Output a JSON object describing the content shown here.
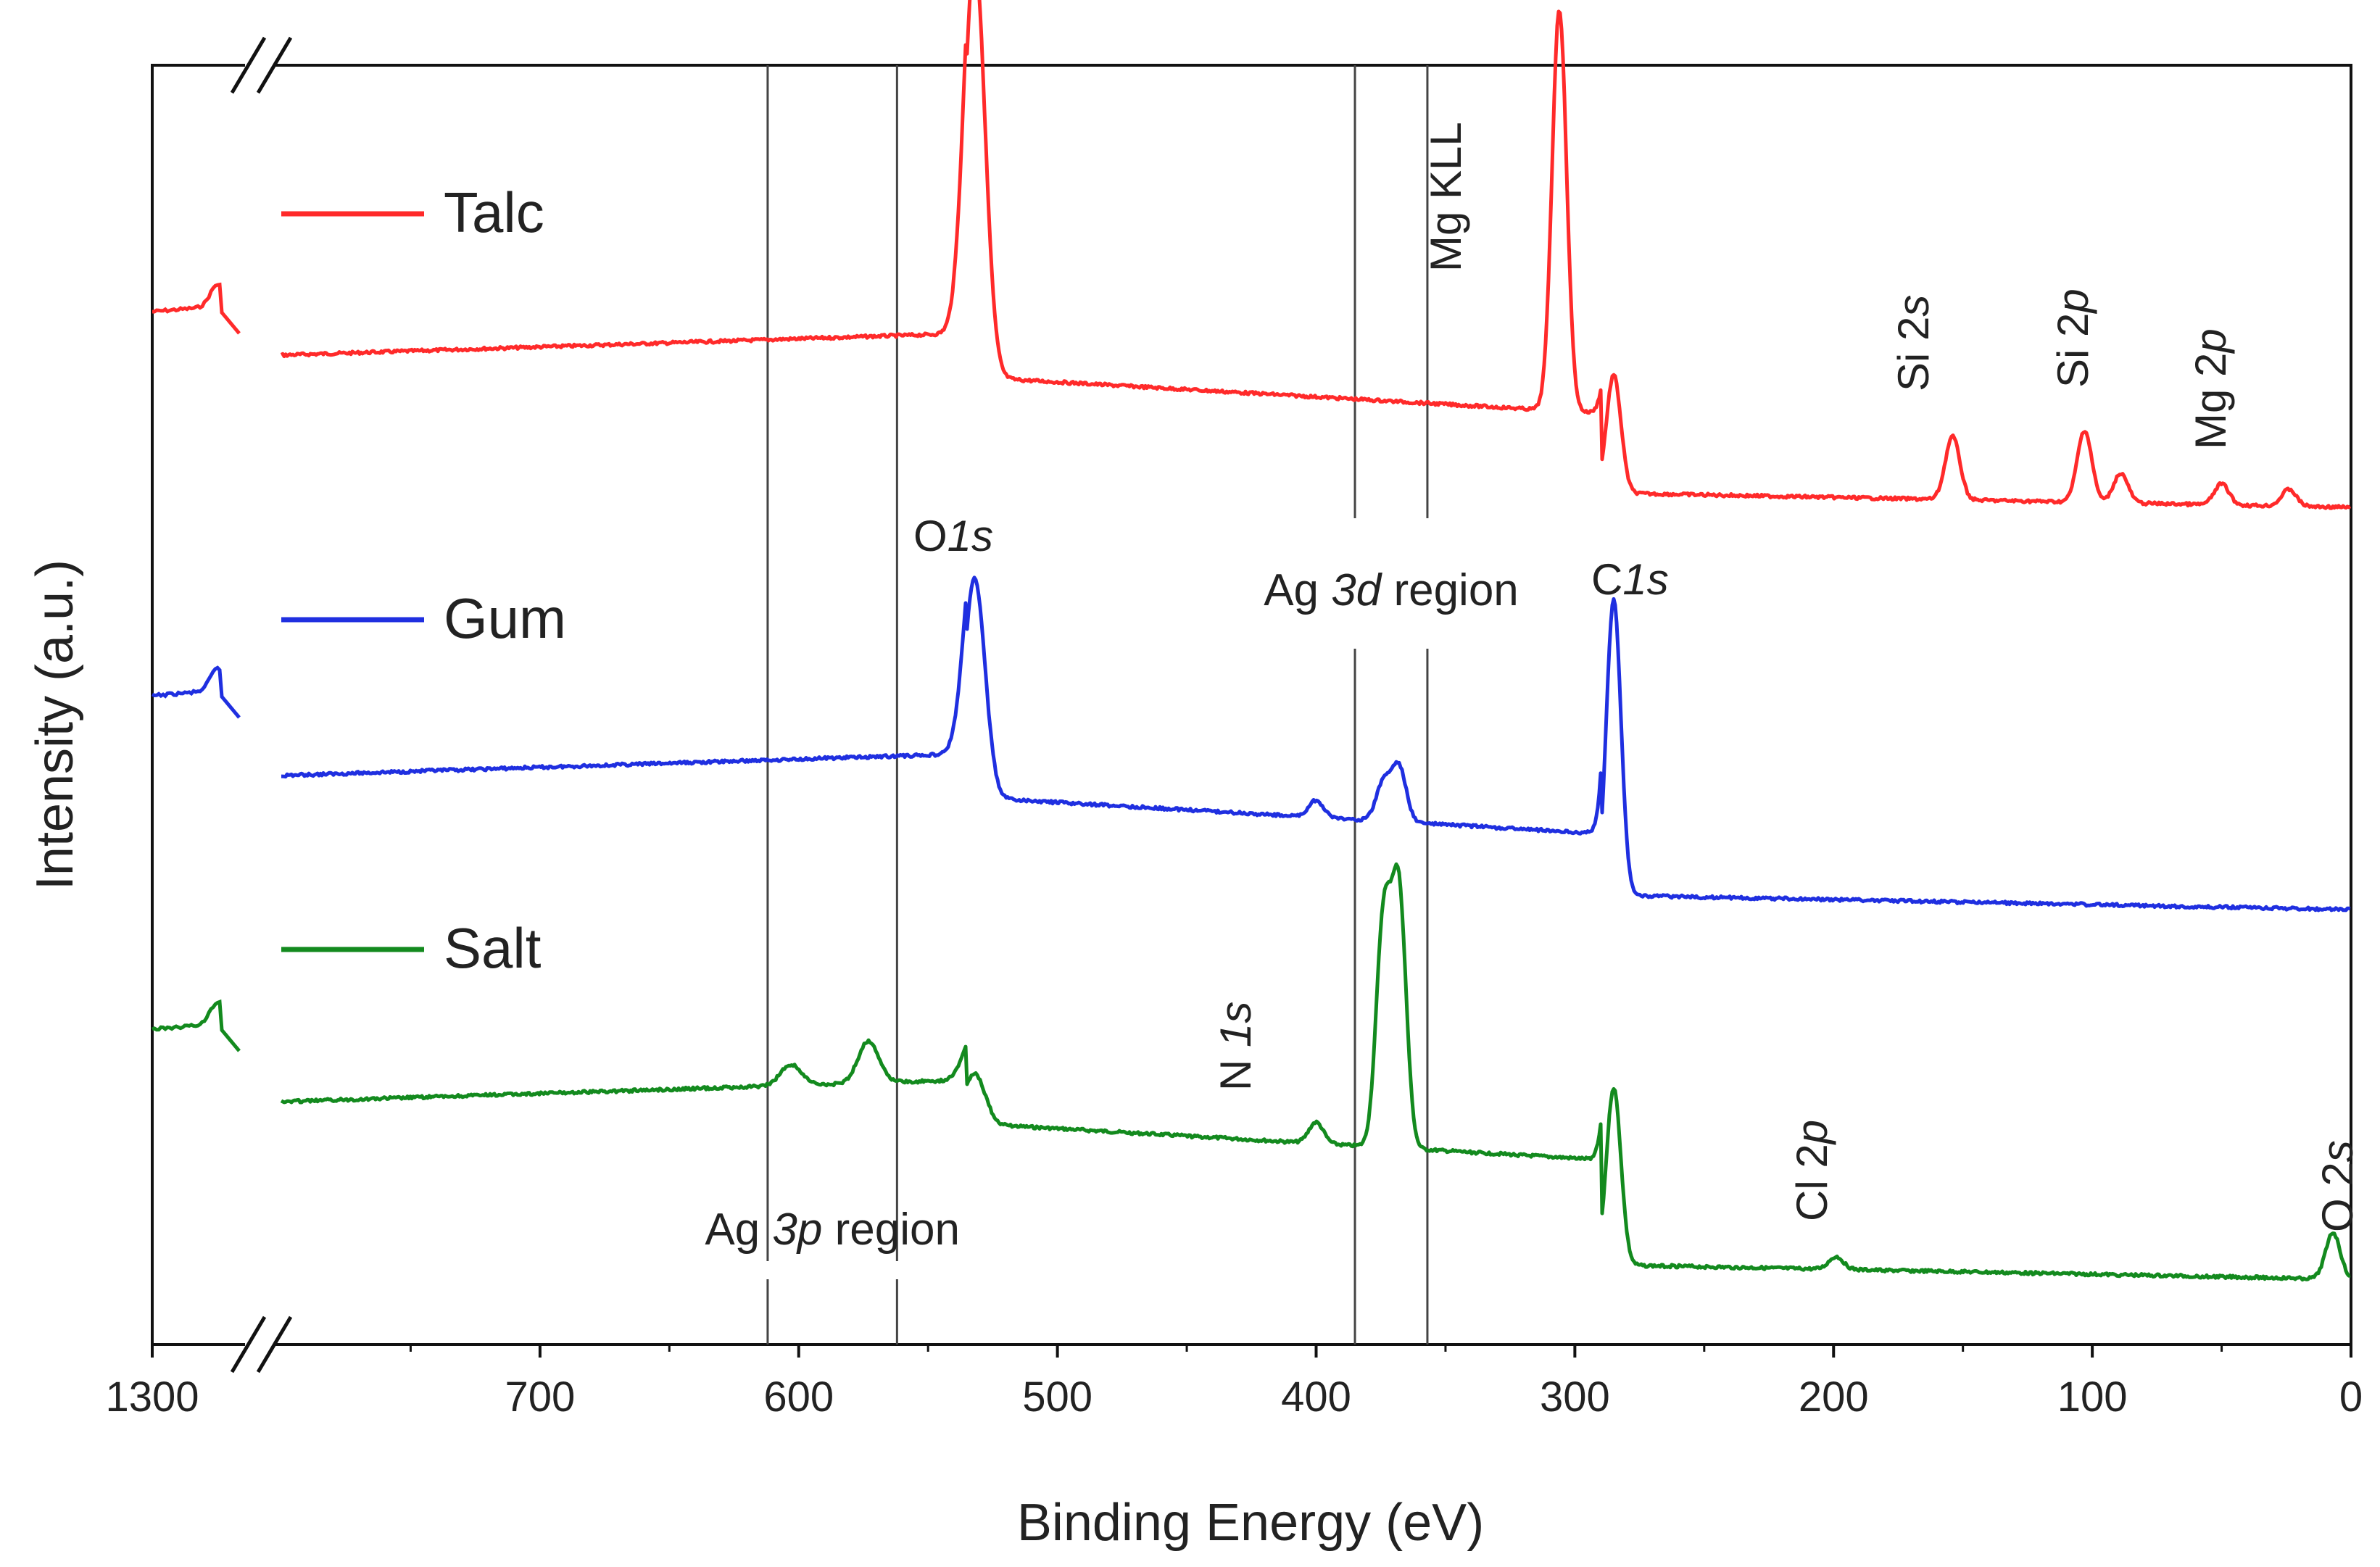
{
  "chart_data": {
    "type": "line",
    "title": "",
    "xlabel": "Binding Energy (eV)",
    "ylabel": "Intensity (a.u.)",
    "x_axis": {
      "reversed": true,
      "broken": true,
      "break_after": 1300,
      "continues_from": 800,
      "ticks": [
        "1300",
        "700",
        "600",
        "500",
        "400",
        "300",
        "200",
        "100",
        "0"
      ],
      "tick_values": [
        1300,
        700,
        600,
        500,
        400,
        300,
        200,
        100,
        0
      ]
    },
    "y_ticks": "none",
    "legend": {
      "placement": "left",
      "entries": [
        {
          "name": "Talc",
          "color": "#ff2a2a"
        },
        {
          "name": "Gum",
          "color": "#1f2fe0"
        },
        {
          "name": "Salt",
          "color": "#138a1e"
        }
      ]
    },
    "reference_lines_eV": [
      612,
      562,
      385,
      357
    ],
    "regions": [
      {
        "label_pre": "Ag ",
        "label_em": "3p",
        "label_post": " region",
        "from": 612,
        "to": 562
      },
      {
        "label_pre": "Ag ",
        "label_em": "3d",
        "label_post": " region",
        "from": 385,
        "to": 357
      }
    ],
    "series": [
      {
        "name": "Talc",
        "color": "#ff2a2a",
        "base_intensity": 1.0,
        "peaks_eV": [
          532,
          306,
          285,
          154,
          103,
          89,
          50,
          24
        ],
        "rel_heights": [
          1.0,
          0.95,
          0.28,
          0.15,
          0.17,
          0.07,
          0.05,
          0.04
        ]
      },
      {
        "name": "Gum",
        "color": "#1f2fe0",
        "base_intensity": 0.62,
        "peaks_eV": [
          532,
          400,
          374,
          368,
          285
        ],
        "rel_heights": [
          0.52,
          0.04,
          0.09,
          0.13,
          0.7
        ]
      },
      {
        "name": "Salt",
        "color": "#138a1e",
        "base_intensity": 0.25,
        "peaks_eV": [
          603,
          573,
          532,
          400,
          374,
          368,
          285,
          199,
          7
        ],
        "rel_heights": [
          0.05,
          0.1,
          0.12,
          0.05,
          0.53,
          0.6,
          0.42,
          0.03,
          0.11
        ]
      }
    ],
    "annotations": [
      {
        "pre": "O",
        "em": "1s",
        "post": "",
        "x": 532,
        "series": "Gum",
        "rotated": false
      },
      {
        "pre": "C",
        "em": "1s",
        "post": "",
        "x": 285,
        "series": "Gum",
        "rotated": false
      },
      {
        "pre": "Mg KLL",
        "em": "",
        "post": "",
        "x": 306,
        "series": "Talc",
        "rotated": true
      },
      {
        "pre": "Si 2",
        "em": "s",
        "post": "",
        "x": 154,
        "series": "Talc",
        "rotated": true
      },
      {
        "pre": "Si 2",
        "em": "p",
        "post": "",
        "x": 103,
        "series": "Talc",
        "rotated": true
      },
      {
        "pre": "Mg 2",
        "em": "p",
        "post": "",
        "x": 50,
        "series": "Talc",
        "rotated": true
      },
      {
        "pre": "N ",
        "em": "1s",
        "post": "",
        "x": 400,
        "series": "Salt",
        "rotated": true
      },
      {
        "pre": "Cl 2",
        "em": "p",
        "post": "",
        "x": 199,
        "series": "Salt",
        "rotated": true
      },
      {
        "pre": "O 2",
        "em": "s",
        "post": "",
        "x": 7,
        "series": "Salt",
        "rotated": true
      }
    ]
  }
}
